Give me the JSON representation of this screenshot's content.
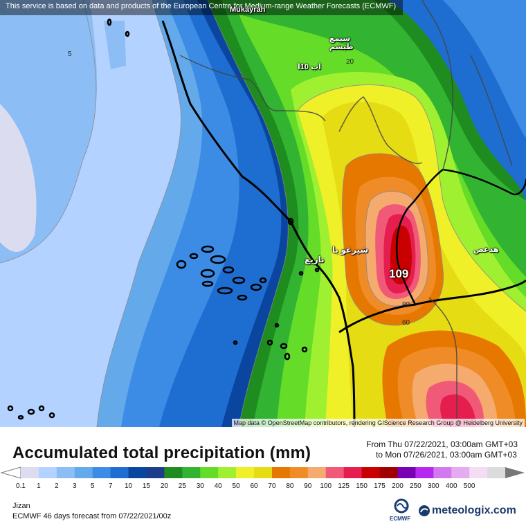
{
  "map": {
    "notice": "This service is based on data and products of the European Centre for Medium-range Weather Forecasts (ECMWF)",
    "attribution": "Map data © OpenStreetMap contributors, rendering GIScience Research Group @ Heidelberg University",
    "place_labels": [
      "Mukayrah",
      "سيمع طيشم",
      "اب 10ا",
      "شيرغو با",
      "ناريغ",
      "هدعص"
    ],
    "contour_labels": [
      "5",
      "20",
      "80",
      "60"
    ],
    "max_value_label": "109"
  },
  "legend": {
    "title": "Accumulated total precipitation (mm)",
    "from": "From Thu 07/22/2021, 03:00am GMT+03",
    "to": "to Mon 07/26/2021, 03:00am GMT+03",
    "levels": [
      "0.1",
      "1",
      "2",
      "3",
      "5",
      "7",
      "10",
      "15",
      "20",
      "25",
      "30",
      "40",
      "50",
      "60",
      "70",
      "80",
      "90",
      "100",
      "125",
      "150",
      "175",
      "200",
      "250",
      "300",
      "400",
      "500"
    ],
    "colors": [
      "#dcdcf0",
      "#b4d2ff",
      "#8cbef5",
      "#64aaeb",
      "#3c8ce6",
      "#1e6ed2",
      "#0a46a0",
      "#1e3c8c",
      "#1e8c1e",
      "#32b432",
      "#64dc28",
      "#a0f032",
      "#f0f028",
      "#e6dc14",
      "#e67800",
      "#f08c28",
      "#f5aa6e",
      "#f05a78",
      "#e61e50",
      "#c80000",
      "#a00000",
      "#7800b4",
      "#b428f0",
      "#d278f0",
      "#e6aaf0",
      "#f5dcf5",
      "#dcdcdc"
    ],
    "location": "Jizan",
    "model_line": "ECMWF 46 days forecast from  07/22/2021/00z"
  },
  "branding": {
    "ecmwf_label": "ECMWF",
    "site": "meteologix.com"
  }
}
